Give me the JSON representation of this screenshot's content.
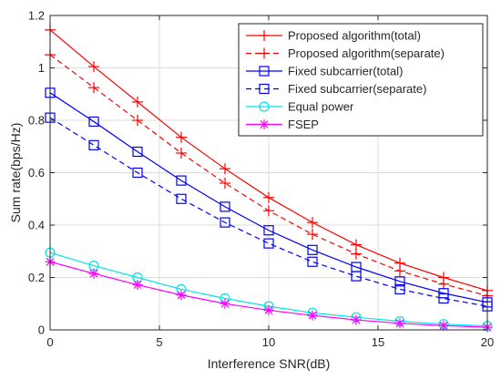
{
  "chart_data": {
    "type": "line",
    "xlabel": "Interference SNR(dB)",
    "ylabel": "Sum rate(bps/Hz)",
    "xlim": [
      0,
      20
    ],
    "ylim": [
      0,
      1.2
    ],
    "xticks": [
      0,
      5,
      10,
      15,
      20
    ],
    "yticks": [
      0,
      0.2,
      0.4,
      0.6,
      0.8,
      1,
      1.2
    ],
    "xtick_labels": [
      "0",
      "5",
      "10",
      "15",
      "20"
    ],
    "ytick_labels": [
      "0",
      "0.2",
      "0.4",
      "0.6",
      "0.8",
      "1",
      "1.2"
    ],
    "grid": true,
    "legend_position": "top-right",
    "x": [
      0,
      2,
      4,
      6,
      8,
      10,
      12,
      14,
      16,
      18,
      20
    ],
    "series": [
      {
        "name": "Proposed algorithm(total)",
        "color": "#ff0000",
        "line": "solid",
        "marker": "plus",
        "values": [
          1.145,
          1.005,
          0.87,
          0.735,
          0.615,
          0.505,
          0.41,
          0.325,
          0.255,
          0.2,
          0.15
        ]
      },
      {
        "name": "Proposed algorithm(separate)",
        "color": "#ff0000",
        "line": "dashed",
        "marker": "plus",
        "values": [
          1.05,
          0.925,
          0.8,
          0.675,
          0.56,
          0.455,
          0.365,
          0.29,
          0.225,
          0.175,
          0.13
        ]
      },
      {
        "name": "Fixed subcarrier(total)",
        "color": "#0000ff",
        "line": "solid",
        "marker": "square",
        "values": [
          0.905,
          0.795,
          0.68,
          0.57,
          0.47,
          0.38,
          0.305,
          0.24,
          0.185,
          0.14,
          0.105
        ]
      },
      {
        "name": "Fixed subcarrier(separate)",
        "color": "#0000ff",
        "line": "dashed",
        "marker": "square",
        "values": [
          0.81,
          0.705,
          0.6,
          0.5,
          0.41,
          0.33,
          0.26,
          0.205,
          0.155,
          0.12,
          0.09
        ]
      },
      {
        "name": "Equal power",
        "color": "#00e5e5",
        "line": "solid",
        "marker": "circle",
        "values": [
          0.295,
          0.245,
          0.2,
          0.155,
          0.12,
          0.09,
          0.065,
          0.048,
          0.033,
          0.022,
          0.015
        ]
      },
      {
        "name": "FSEP",
        "color": "#ff00ff",
        "line": "solid",
        "marker": "asterisk",
        "values": [
          0.26,
          0.215,
          0.172,
          0.133,
          0.1,
          0.075,
          0.055,
          0.038,
          0.025,
          0.016,
          0.01
        ]
      }
    ]
  }
}
